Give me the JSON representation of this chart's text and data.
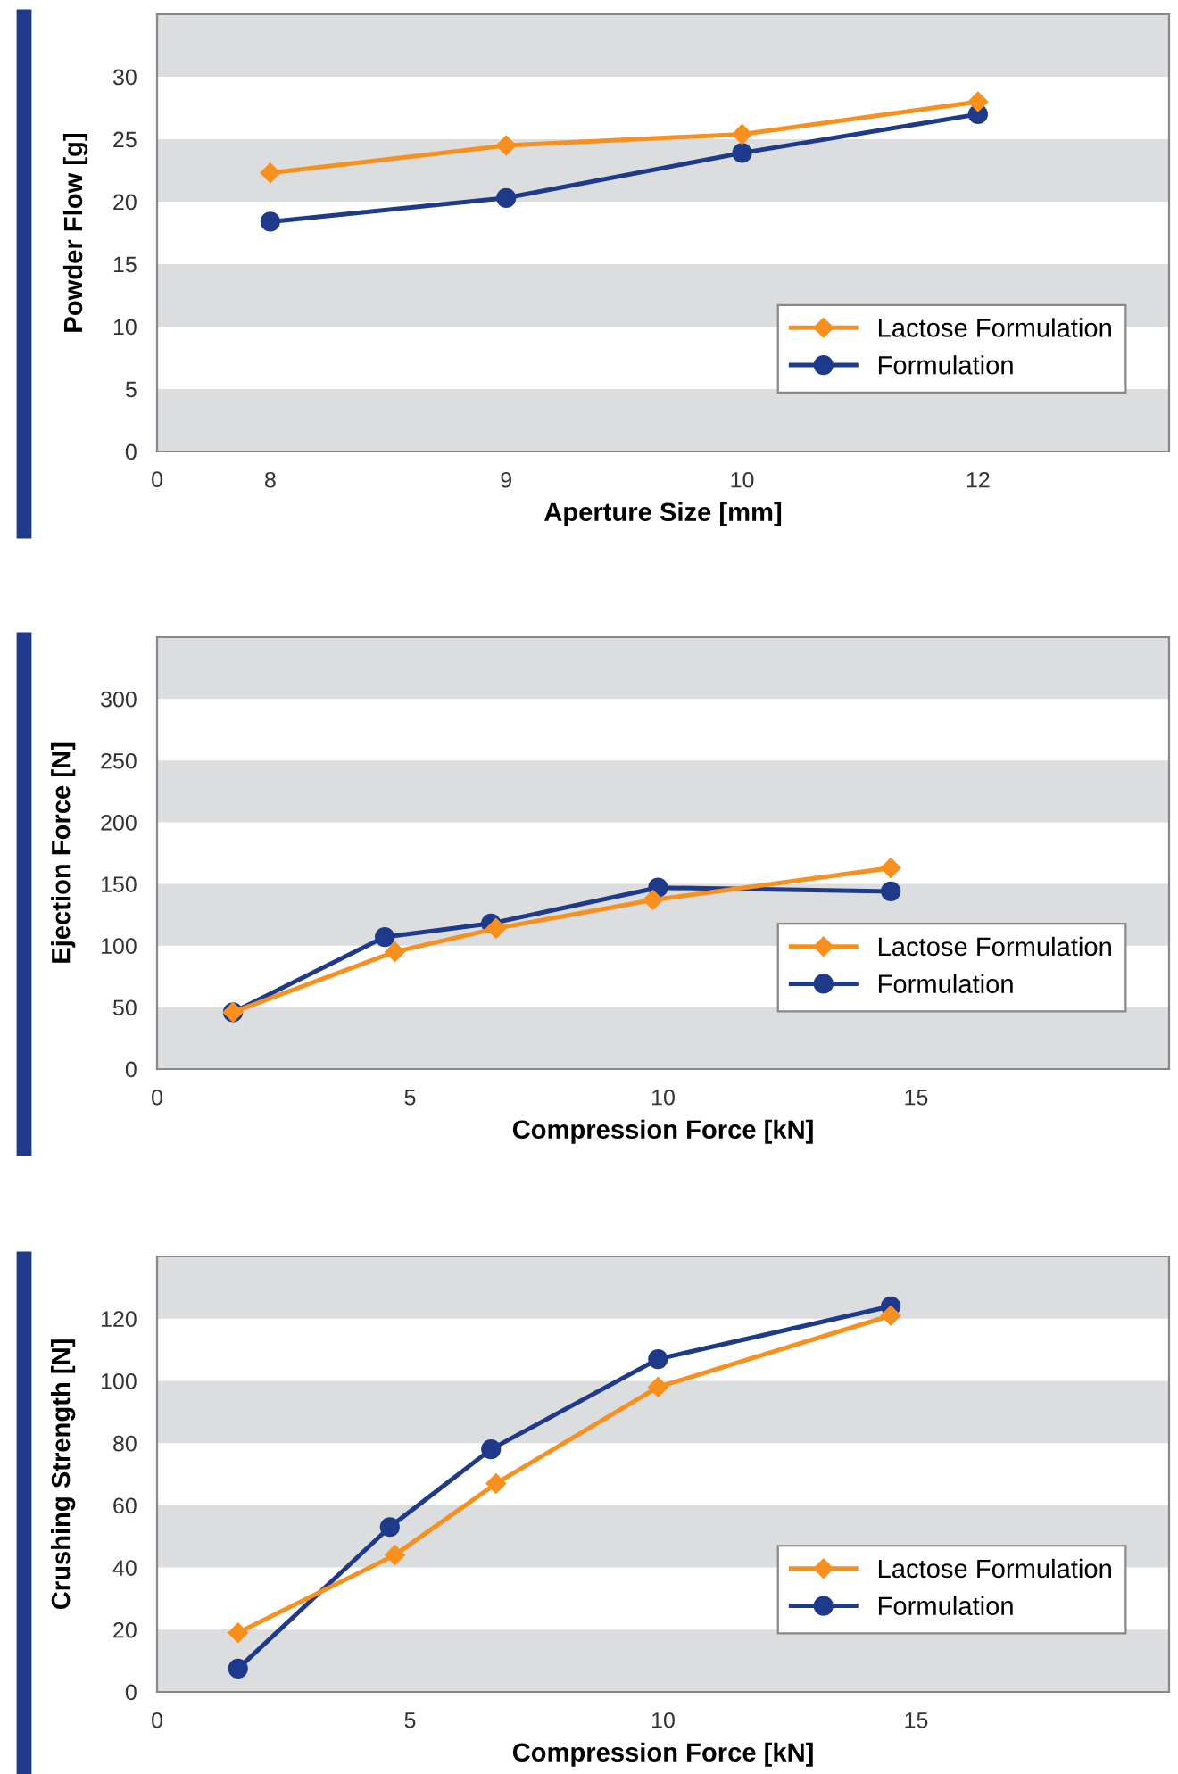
{
  "chart_data": [
    {
      "type": "line",
      "xlabel": "Aperture Size [mm]",
      "ylabel": "Powder Flow [g]",
      "categories": [
        "8",
        "9",
        "10",
        "12"
      ],
      "ylim": [
        0,
        35
      ],
      "yticks": [
        0,
        5,
        10,
        15,
        20,
        25,
        30
      ],
      "annotations": [
        "0"
      ],
      "legend": "right",
      "grid": false,
      "line_style": "solid",
      "bands": [
        {
          "axis": "y",
          "from": 0,
          "to": 5,
          "color": "#dcdddf"
        },
        {
          "axis": "y",
          "from": 10,
          "to": 15,
          "color": "#dcdddf"
        },
        {
          "axis": "y",
          "from": 20,
          "to": 25,
          "color": "#dcdddf"
        },
        {
          "axis": "y",
          "from": 30,
          "to": 35,
          "color": "#dcdddf"
        }
      ],
      "series": [
        {
          "name": "Lactose Formulation",
          "color": "#f7901e",
          "marker": "diamond",
          "values": [
            22.3,
            24.5,
            25.4,
            28.0
          ]
        },
        {
          "name": "Formulation",
          "color": "#1f3a8a",
          "marker": "circle",
          "values": [
            18.4,
            20.3,
            23.9,
            27.0
          ]
        }
      ]
    },
    {
      "type": "line",
      "xlabel": "Compression Force [kN]",
      "ylabel": "Ejection Force [N]",
      "xlim": [
        0,
        20
      ],
      "xticks": [
        0,
        5,
        10,
        15
      ],
      "ylim": [
        0,
        350
      ],
      "yticks": [
        0,
        50,
        100,
        150,
        200,
        250,
        300
      ],
      "legend": "right",
      "grid": false,
      "line_style": "solid",
      "bands": [
        {
          "axis": "y",
          "from": 0,
          "to": 50,
          "color": "#dcdddf"
        },
        {
          "axis": "y",
          "from": 100,
          "to": 150,
          "color": "#dcdddf"
        },
        {
          "axis": "y",
          "from": 200,
          "to": 250,
          "color": "#dcdddf"
        },
        {
          "axis": "y",
          "from": 300,
          "to": 350,
          "color": "#dcdddf"
        }
      ],
      "series": [
        {
          "name": "Lactose Formulation",
          "color": "#f7901e",
          "marker": "diamond",
          "x": [
            1.5,
            4.7,
            6.7,
            9.8,
            14.5
          ],
          "values": [
            46,
            95,
            114,
            137,
            163
          ]
        },
        {
          "name": "Formulation",
          "color": "#1f3a8a",
          "marker": "circle",
          "x": [
            1.5,
            4.5,
            6.6,
            9.9,
            14.5
          ],
          "values": [
            46,
            107,
            118,
            147,
            144
          ]
        }
      ]
    },
    {
      "type": "line",
      "xlabel": "Compression Force [kN]",
      "ylabel": "Crushing Strength [N]",
      "xlim": [
        0,
        20
      ],
      "xticks": [
        0,
        5,
        10,
        15
      ],
      "ylim": [
        0,
        140
      ],
      "yticks": [
        0,
        20,
        40,
        60,
        80,
        100,
        120
      ],
      "legend": "right",
      "grid": false,
      "line_style": "solid",
      "bands": [
        {
          "axis": "y",
          "from": 0,
          "to": 20,
          "color": "#dcdddf"
        },
        {
          "axis": "y",
          "from": 40,
          "to": 60,
          "color": "#dcdddf"
        },
        {
          "axis": "y",
          "from": 80,
          "to": 100,
          "color": "#dcdddf"
        },
        {
          "axis": "y",
          "from": 120,
          "to": 140,
          "color": "#dcdddf"
        }
      ],
      "series": [
        {
          "name": "Lactose Formulation",
          "color": "#f7901e",
          "marker": "diamond",
          "x": [
            1.6,
            4.7,
            6.7,
            9.9,
            14.5
          ],
          "values": [
            19,
            44,
            67,
            98,
            121
          ]
        },
        {
          "name": "Formulation",
          "color": "#1f3a8a",
          "marker": "circle",
          "x": [
            1.6,
            4.6,
            6.6,
            9.9,
            14.5
          ],
          "values": [
            7.5,
            53,
            78,
            107,
            124
          ]
        }
      ]
    }
  ]
}
